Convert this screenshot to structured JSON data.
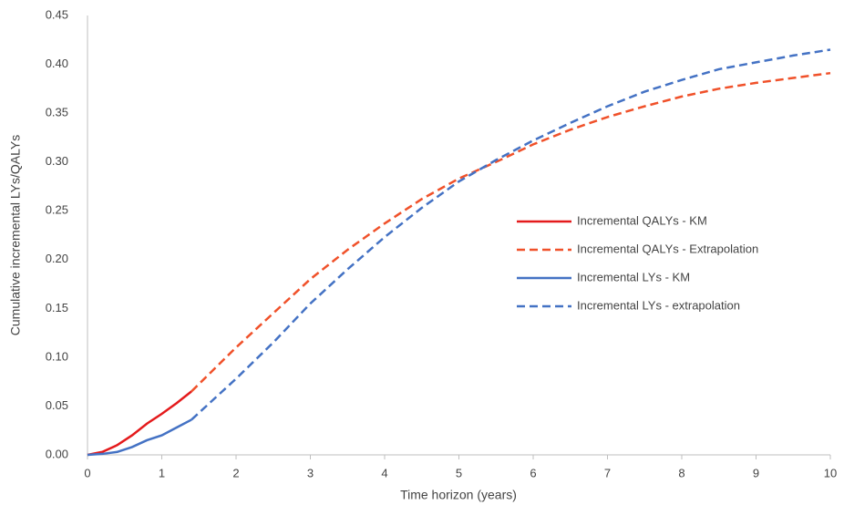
{
  "chart_data": {
    "type": "line",
    "x_label": "Time horizon (years)",
    "y_label": "Cumulative incremental LYs/QALYs",
    "x": [
      0,
      0.2,
      0.4,
      0.6,
      0.8,
      1,
      1.2,
      1.4,
      2,
      2.5,
      3,
      3.5,
      4,
      4.5,
      5,
      5.5,
      6,
      6.5,
      7,
      7.5,
      8,
      8.5,
      9,
      9.5,
      10
    ],
    "series": [
      {
        "name": "Incremental QALYs - KM",
        "color": "#e41a1c",
        "dashed": false,
        "values": [
          0,
          0.003,
          0.01,
          0.02,
          0.032,
          0.042,
          0.053,
          0.065,
          null,
          null,
          null,
          null,
          null,
          null,
          null,
          null,
          null,
          null,
          null,
          null,
          null,
          null,
          null,
          null,
          null
        ]
      },
      {
        "name": "Incremental QALYs - Extrapolation",
        "color": "#f0512a",
        "dashed": true,
        "values": [
          null,
          null,
          null,
          null,
          null,
          null,
          null,
          0.065,
          0.11,
          0.145,
          0.18,
          0.21,
          0.237,
          0.262,
          0.283,
          0.3,
          0.318,
          0.333,
          0.346,
          0.357,
          0.367,
          0.375,
          0.381,
          0.386,
          0.391
        ]
      },
      {
        "name": "Incremental LYs - KM",
        "color": "#4472c4",
        "dashed": false,
        "values": [
          0,
          0.001,
          0.003,
          0.008,
          0.015,
          0.02,
          0.028,
          0.036,
          null,
          null,
          null,
          null,
          null,
          null,
          null,
          null,
          null,
          null,
          null,
          null,
          null,
          null,
          null,
          null,
          null
        ]
      },
      {
        "name": "Incremental LYs - extrapolation",
        "color": "#4472c4",
        "dashed": true,
        "values": [
          null,
          null,
          null,
          null,
          null,
          null,
          null,
          0.036,
          0.078,
          0.115,
          0.155,
          0.19,
          0.223,
          0.253,
          0.28,
          0.302,
          0.322,
          0.34,
          0.357,
          0.372,
          0.384,
          0.395,
          0.402,
          0.409,
          0.415
        ]
      }
    ],
    "xlim": [
      0,
      10
    ],
    "xticks": [
      0,
      1,
      2,
      3,
      4,
      5,
      6,
      7,
      8,
      9,
      10
    ],
    "ylim": [
      0,
      0.45
    ],
    "yticks": [
      {
        "value": 0,
        "label": "0.00"
      },
      {
        "value": 0.05,
        "label": "0.05"
      },
      {
        "value": 0.1,
        "label": "0.10"
      },
      {
        "value": 0.15,
        "label": "0.15"
      },
      {
        "value": 0.2,
        "label": "0.20"
      },
      {
        "value": 0.25,
        "label": "0.25"
      },
      {
        "value": 0.3,
        "label": "0.30"
      },
      {
        "value": 0.35,
        "label": "0.35"
      },
      {
        "value": 0.4,
        "label": "0.40"
      },
      {
        "value": 0.45,
        "label": "0.45"
      }
    ],
    "grid": false,
    "legend": "right"
  }
}
